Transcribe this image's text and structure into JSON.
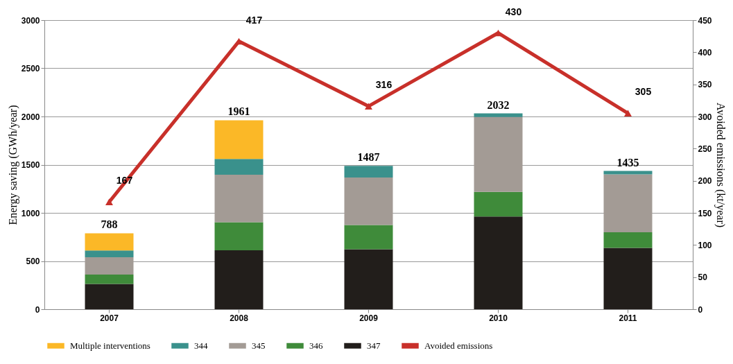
{
  "chart_data": {
    "type": "bar",
    "stacked": true,
    "categories": [
      "2007",
      "2008",
      "2009",
      "2010",
      "2011"
    ],
    "ylabel": "Energy saving (GWh/year)",
    "y2label": "Avoided emissions (kt/year)",
    "ylim": [
      0,
      3000
    ],
    "yticks": [
      0,
      500,
      1000,
      1500,
      2000,
      2500,
      3000
    ],
    "y2lim": [
      0,
      450
    ],
    "y2ticks": [
      0,
      50,
      100,
      150,
      200,
      250,
      300,
      350,
      400,
      450
    ],
    "grid": "y",
    "legend": "bottom",
    "marker": "triangle",
    "totals": [
      "788",
      "1961",
      "1487",
      "2032",
      "1435"
    ],
    "series": [
      {
        "name": "347",
        "color": "#221e1b",
        "values": [
          263,
          612,
          622,
          963,
          637
        ]
      },
      {
        "name": "346",
        "color": "#3f8b3a",
        "values": [
          96,
          290,
          252,
          255,
          161
        ]
      },
      {
        "name": "345",
        "color": "#a39b95",
        "values": [
          181,
          493,
          493,
          776,
          602
        ]
      },
      {
        "name": "344",
        "color": "#3a918c",
        "values": [
          69,
          164,
          120,
          38,
          35
        ]
      },
      {
        "name": "Multiple interventions",
        "color": "#fbb827",
        "values": [
          179,
          402,
          0,
          0,
          0
        ]
      },
      {
        "name": "Avoided emissions",
        "type": "line",
        "axis": "y2",
        "color": "#c8302a",
        "values": [
          167,
          417,
          316,
          430,
          305
        ],
        "value_labels": [
          "167",
          "417",
          "316",
          "430",
          "305"
        ]
      }
    ]
  }
}
